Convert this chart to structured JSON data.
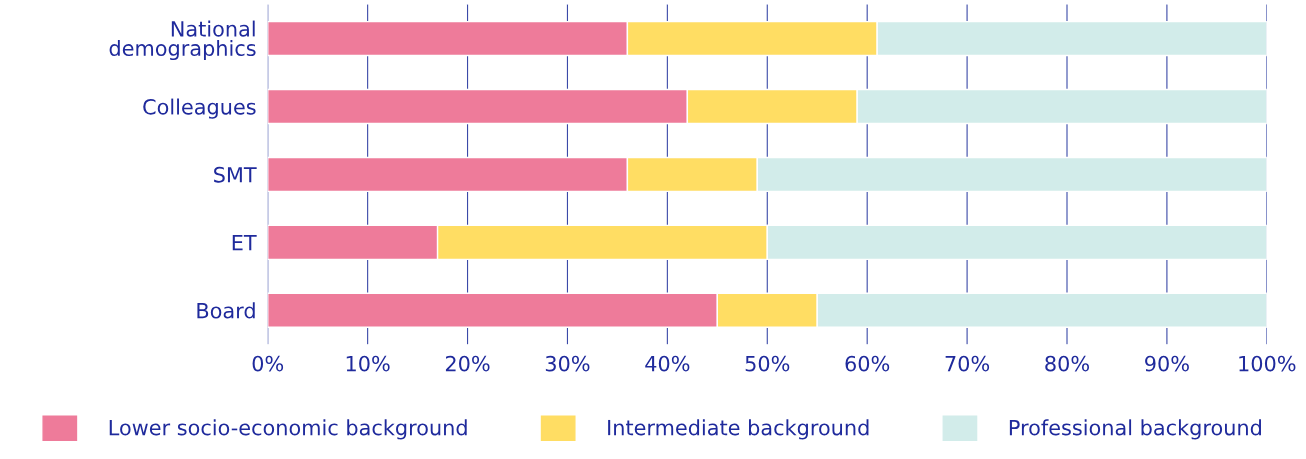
{
  "chart_data": {
    "type": "bar",
    "orientation": "horizontal",
    "stacked": true,
    "categories": [
      "National\ndemographics",
      "Colleagues",
      "SMT",
      "ET",
      "Board"
    ],
    "series": [
      {
        "name": "Lower socio-economic background",
        "color": "#ee7b9a",
        "values": [
          36,
          42,
          36,
          17,
          45
        ]
      },
      {
        "name": "Intermediate background",
        "color": "#ffdd63",
        "values": [
          25,
          17,
          13,
          33,
          10
        ]
      },
      {
        "name": "Professional background",
        "color": "#d2ecea",
        "values": [
          39,
          41,
          51,
          50,
          45
        ]
      }
    ],
    "xlim": [
      0,
      100
    ],
    "xticks": [
      {
        "value": 0,
        "label": "0%"
      },
      {
        "value": 10,
        "label": "10%"
      },
      {
        "value": 20,
        "label": "20%"
      },
      {
        "value": 30,
        "label": "30%"
      },
      {
        "value": 40,
        "label": "40%"
      },
      {
        "value": 50,
        "label": "50%"
      },
      {
        "value": 60,
        "label": "60%"
      },
      {
        "value": 70,
        "label": "70%"
      },
      {
        "value": 80,
        "label": "80%"
      },
      {
        "value": 90,
        "label": "90%"
      },
      {
        "value": 100,
        "label": "100%"
      }
    ],
    "grid": "x",
    "legend": "bottom"
  }
}
